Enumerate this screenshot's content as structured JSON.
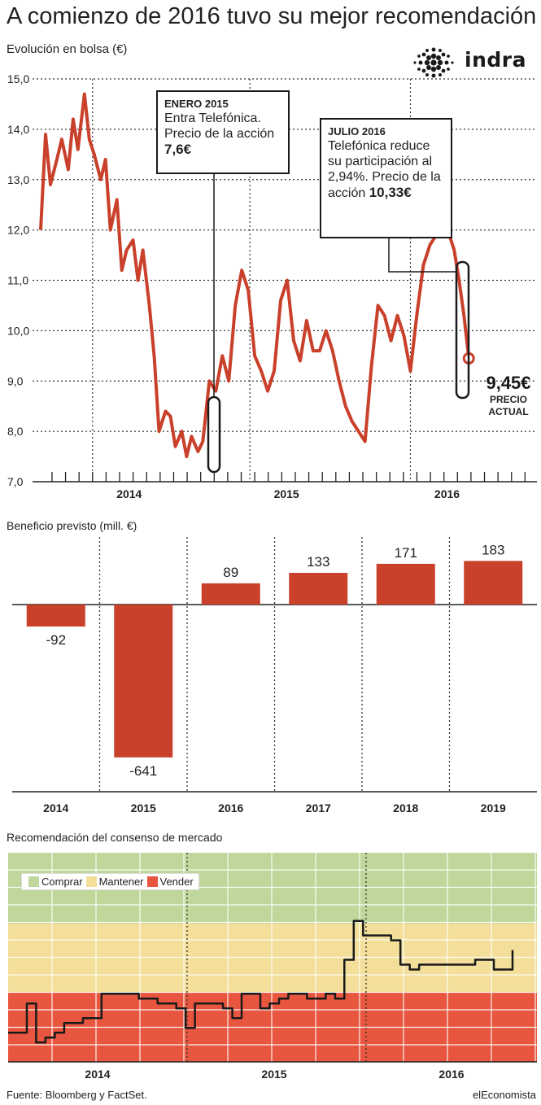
{
  "headline": "A comienzo de 2016 tuvo su mejor recomendación",
  "logo": {
    "text": "indra",
    "icon": "dotted-circle-logo-icon"
  },
  "colors": {
    "accent": "#c9402b",
    "green": "#bfd79a",
    "yellow": "#f3de9a",
    "red": "#e8563f",
    "line": "#1a1a1a"
  },
  "stock": {
    "title": "Evolución en bolsa (€)",
    "callout1": {
      "head": "ENERO 2015",
      "text": "Entra Telefónica. Precio de la acción",
      "value": "7,6€"
    },
    "callout2": {
      "head": "JULIO 2016",
      "text": "Telefónica reduce su participación al 2,94%. Precio de la acción",
      "value": "10,33€"
    },
    "current_value": "9,45€",
    "current_label": "PRECIO ACTUAL"
  },
  "profit": {
    "title": "Beneficio previsto (mill. €)"
  },
  "consensus": {
    "title": "Recomendación del consenso de mercado",
    "legend": [
      {
        "label": "Comprar",
        "color": "#bfd79a"
      },
      {
        "label": "Mantener",
        "color": "#f3de9a"
      },
      {
        "label": "Vender",
        "color": "#e8563f"
      }
    ]
  },
  "footer": {
    "source": "Fuente: Bloomberg y FactSet.",
    "brand": "elEconomista"
  },
  "chart_data": [
    {
      "type": "line",
      "title": "Evolución en bolsa (€)",
      "ylim": [
        7.0,
        15.0
      ],
      "yticks": [
        "15,0",
        "14,0",
        "13,0",
        "12,0",
        "11,0",
        "10,0",
        "9,0",
        "8,0",
        "7,0"
      ],
      "xticks": [
        "2014",
        "2015",
        "2016"
      ],
      "grid": true,
      "series": [
        {
          "x": [
            2014.0,
            2014.03,
            2014.06,
            2014.1,
            2014.13,
            2014.17,
            2014.2,
            2014.23,
            2014.27,
            2014.3,
            2014.33,
            2014.37,
            2014.4,
            2014.43,
            2014.47,
            2014.5,
            2014.53,
            2014.57,
            2014.6,
            2014.63,
            2014.67,
            2014.7,
            2014.73,
            2014.77,
            2014.8,
            2014.83,
            2014.87,
            2014.9,
            2014.93,
            2014.97,
            2015.0,
            2015.04,
            2015.08,
            2015.12,
            2015.16,
            2015.2,
            2015.24,
            2015.28,
            2015.32,
            2015.36,
            2015.4,
            2015.44,
            2015.48,
            2015.52,
            2015.56,
            2015.6,
            2015.64,
            2015.68,
            2015.72,
            2015.76,
            2015.8,
            2015.84,
            2015.88,
            2015.92,
            2015.96,
            2016.0,
            2016.04,
            2016.08,
            2016.12,
            2016.16,
            2016.2,
            2016.24,
            2016.28,
            2016.32,
            2016.36,
            2016.4,
            2016.44,
            2016.48,
            2016.52,
            2016.55,
            2016.58,
            2016.61,
            2016.64
          ],
          "y": [
            12.0,
            13.9,
            12.9,
            13.4,
            13.8,
            13.2,
            14.2,
            13.6,
            14.7,
            13.8,
            13.5,
            13.0,
            13.4,
            12.0,
            12.6,
            11.2,
            11.6,
            11.8,
            11.0,
            11.6,
            10.5,
            9.5,
            8.0,
            8.4,
            8.3,
            7.7,
            8.0,
            7.5,
            7.9,
            7.6,
            7.8,
            9.0,
            8.8,
            9.5,
            9.0,
            10.5,
            11.2,
            10.8,
            9.5,
            9.2,
            8.8,
            9.2,
            10.6,
            11.0,
            9.8,
            9.4,
            10.2,
            9.6,
            9.6,
            10.0,
            9.6,
            9.0,
            8.5,
            8.2,
            8.0,
            7.8,
            9.3,
            10.5,
            10.3,
            9.8,
            10.3,
            9.9,
            9.2,
            10.33,
            11.3,
            11.7,
            11.9,
            12.3,
            11.9,
            11.6,
            11.0,
            10.3,
            9.45
          ]
        }
      ]
    },
    {
      "type": "bar",
      "title": "Beneficio previsto (mill. €)",
      "categories": [
        "2014",
        "2015",
        "2016",
        "2017",
        "2018",
        "2019"
      ],
      "values": [
        -92,
        -641,
        89,
        133,
        171,
        183
      ],
      "value_labels": [
        "-92",
        "-641",
        "89",
        "133",
        "171",
        "183"
      ]
    },
    {
      "type": "line",
      "title": "Recomendación del consenso de mercado",
      "xticks": [
        "2014",
        "2015",
        "2016"
      ],
      "bands": [
        "Comprar",
        "Mantener",
        "Vender"
      ],
      "ylim": [
        1,
        5
      ],
      "series": [
        {
          "x": [
            2013.75,
            2013.8,
            2013.85,
            2013.9,
            2013.95,
            2014.0,
            2014.05,
            2014.1,
            2014.15,
            2014.2,
            2014.25,
            2014.3,
            2014.35,
            2014.4,
            2014.45,
            2014.5,
            2014.55,
            2014.6,
            2014.65,
            2014.7,
            2014.75,
            2014.8,
            2014.85,
            2014.9,
            2014.95,
            2015.0,
            2015.05,
            2015.1,
            2015.15,
            2015.2,
            2015.25,
            2015.3,
            2015.35,
            2015.4,
            2015.45,
            2015.5,
            2015.55,
            2015.6,
            2015.65,
            2015.7,
            2015.75,
            2015.8,
            2015.85,
            2015.9,
            2015.95,
            2016.0,
            2016.05,
            2016.1,
            2016.15,
            2016.2,
            2016.25,
            2016.3,
            2016.35,
            2016.4,
            2016.45
          ],
          "y": [
            1.6,
            1.6,
            2.2,
            1.4,
            1.5,
            1.6,
            1.8,
            1.8,
            1.9,
            1.9,
            2.4,
            2.4,
            2.4,
            2.4,
            2.3,
            2.3,
            2.2,
            2.2,
            2.1,
            1.7,
            2.2,
            2.2,
            2.2,
            2.1,
            1.9,
            2.4,
            2.4,
            2.1,
            2.2,
            2.3,
            2.4,
            2.4,
            2.3,
            2.3,
            2.4,
            2.3,
            3.1,
            3.9,
            3.6,
            3.6,
            3.6,
            3.5,
            3.0,
            2.9,
            3.0,
            3.0,
            3.0,
            3.0,
            3.0,
            3.0,
            3.1,
            3.1,
            2.9,
            2.9,
            3.3
          ]
        }
      ]
    }
  ]
}
